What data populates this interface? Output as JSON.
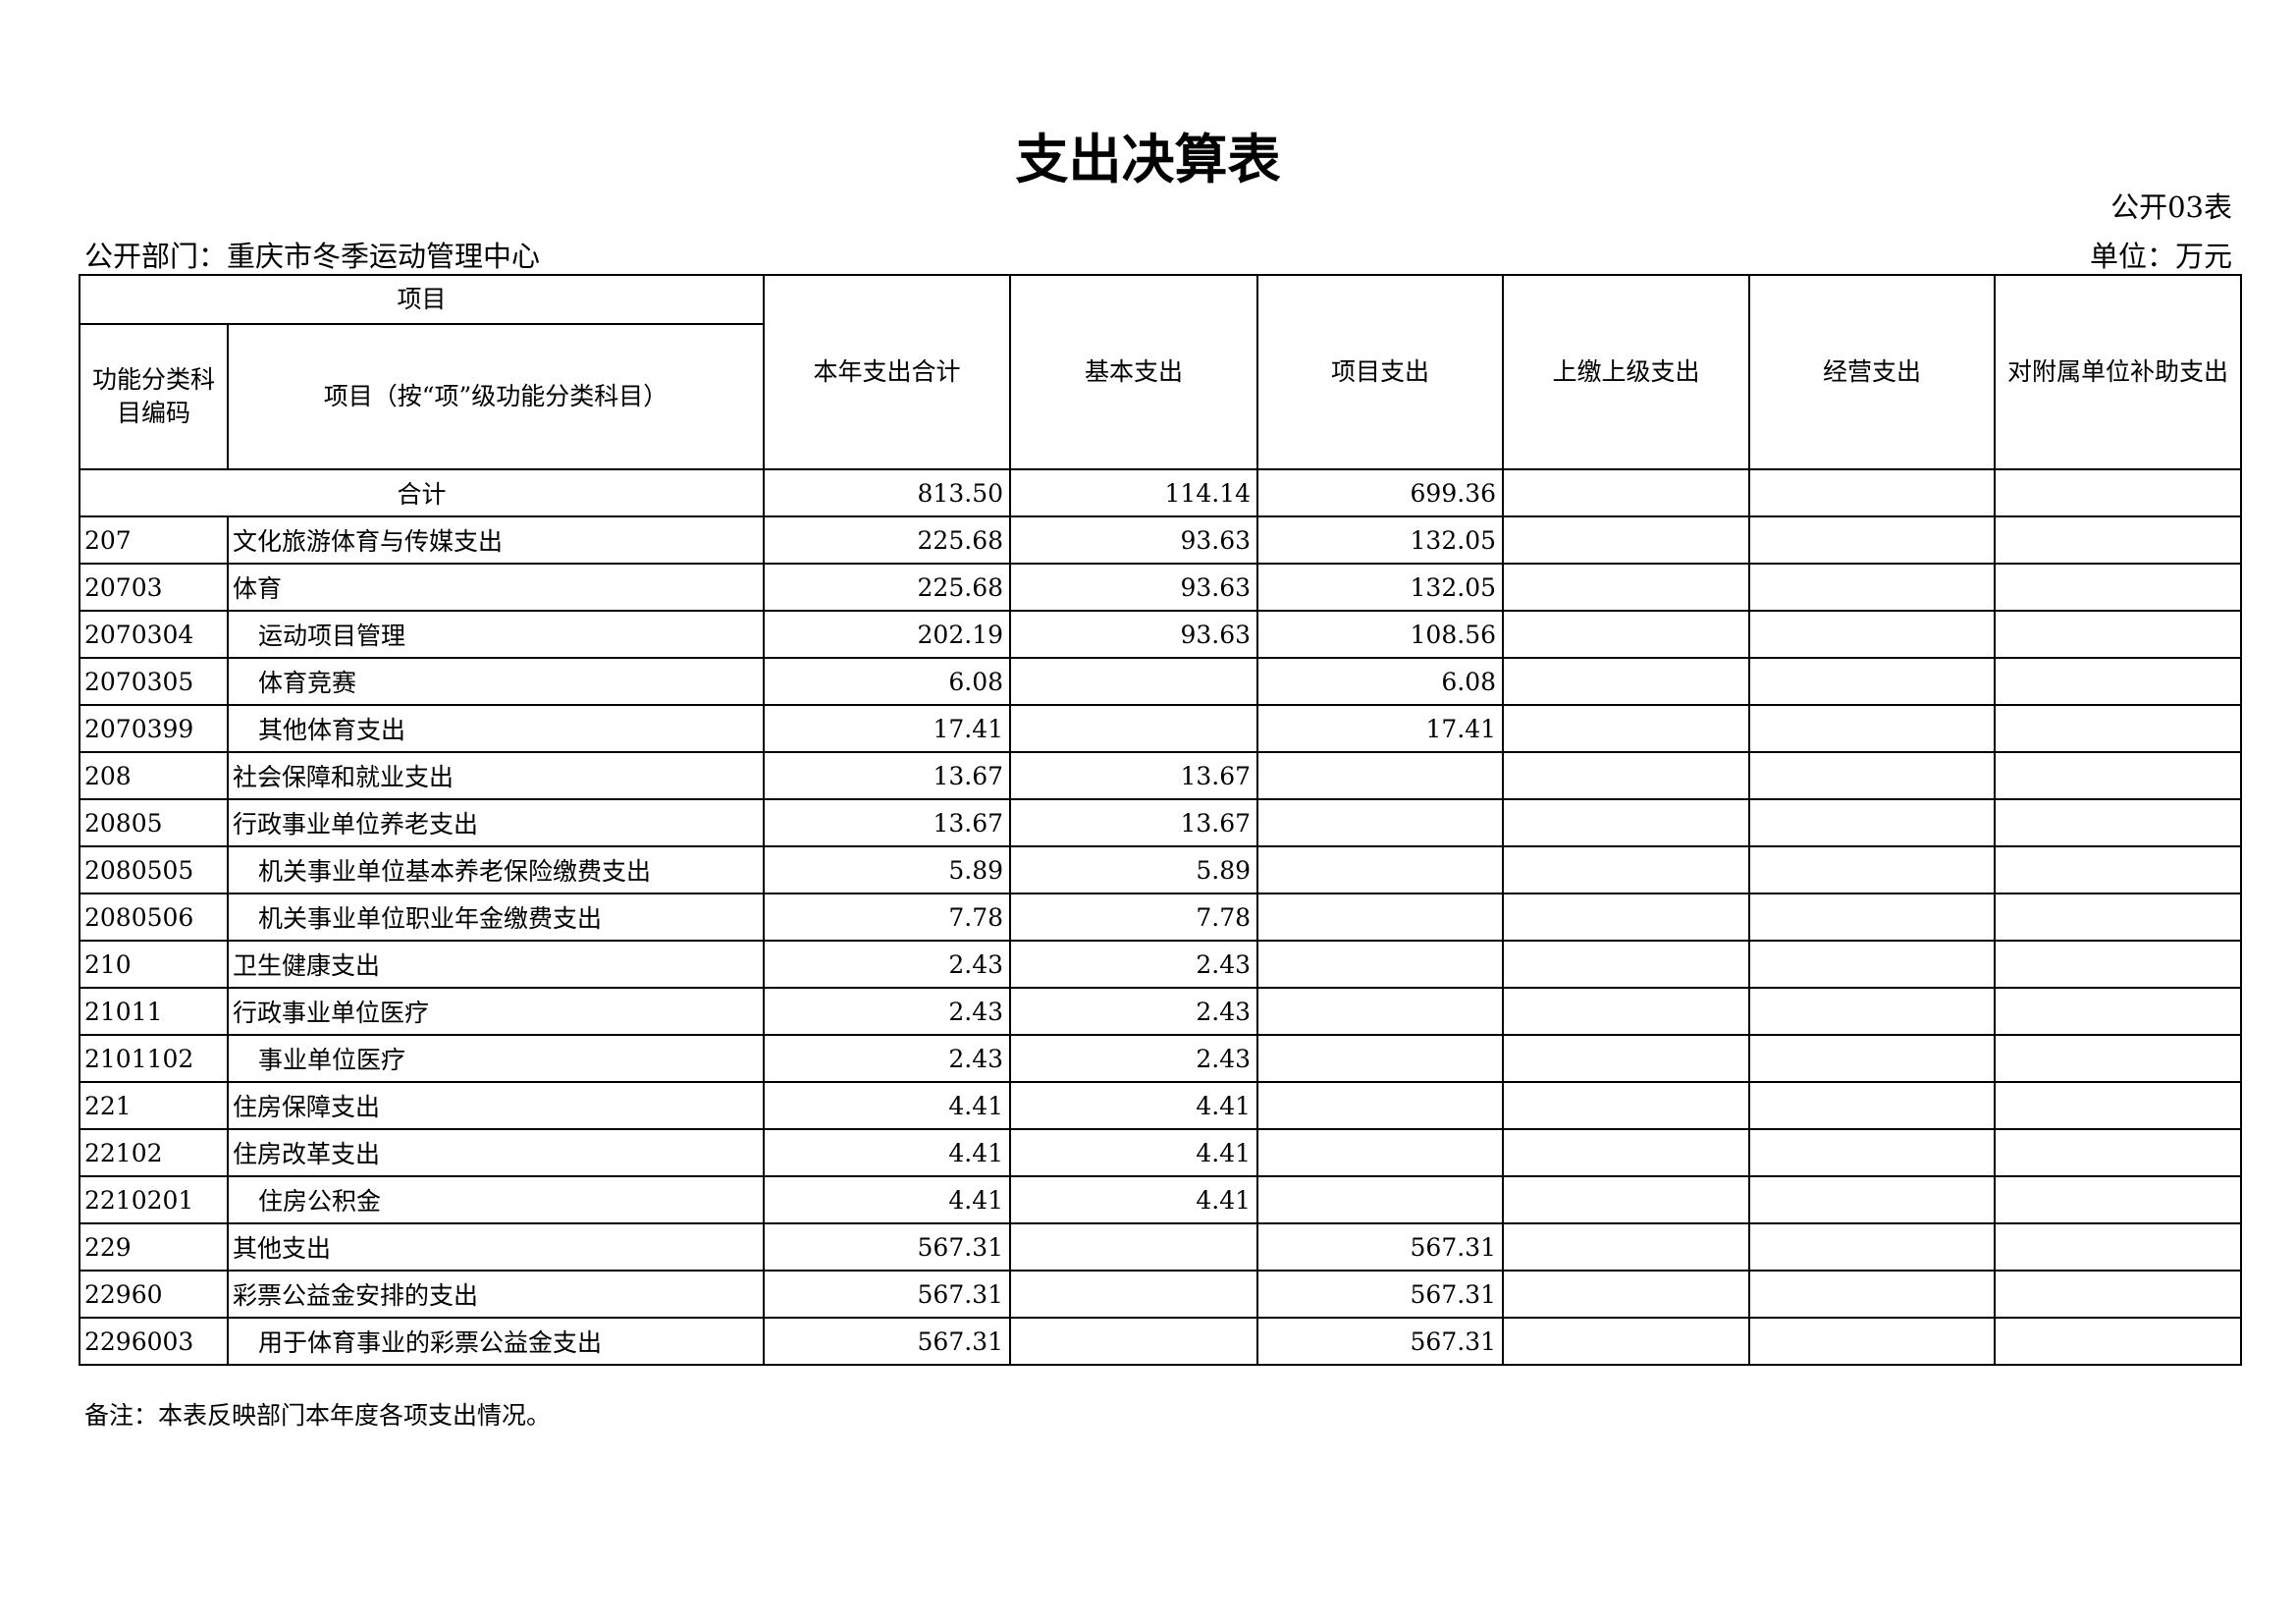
{
  "title": "支出决算表",
  "table_no": "公开03表",
  "department": "公开部门：重庆市冬季运动管理中心",
  "unit": "单位：万元",
  "headers": {
    "project": "项目",
    "code": "功能分类科目编码",
    "name": "项目（按“项”级功能分类科目）",
    "total": "本年支出合计",
    "basic": "基本支出",
    "project_exp": "项目支出",
    "remit": "上缴上级支出",
    "operating": "经营支出",
    "subsidy": "对附属单位补助支出"
  },
  "total_row": {
    "label": "合计",
    "total": "813.50",
    "basic": "114.14",
    "project": "699.36"
  },
  "rows": [
    {
      "code": "207",
      "name": "文化旅游体育与传媒支出",
      "indent": false,
      "total": "225.68",
      "basic": "93.63",
      "project": "132.05"
    },
    {
      "code": "20703",
      "name": "体育",
      "indent": false,
      "total": "225.68",
      "basic": "93.63",
      "project": "132.05"
    },
    {
      "code": "2070304",
      "name": "运动项目管理",
      "indent": true,
      "total": "202.19",
      "basic": "93.63",
      "project": "108.56"
    },
    {
      "code": "2070305",
      "name": "体育竞赛",
      "indent": true,
      "total": "6.08",
      "basic": "",
      "project": "6.08"
    },
    {
      "code": "2070399",
      "name": "其他体育支出",
      "indent": true,
      "total": "17.41",
      "basic": "",
      "project": "17.41"
    },
    {
      "code": "208",
      "name": "社会保障和就业支出",
      "indent": false,
      "total": "13.67",
      "basic": "13.67",
      "project": ""
    },
    {
      "code": "20805",
      "name": "行政事业单位养老支出",
      "indent": false,
      "total": "13.67",
      "basic": "13.67",
      "project": ""
    },
    {
      "code": "2080505",
      "name": "机关事业单位基本养老保险缴费支出",
      "indent": true,
      "total": "5.89",
      "basic": "5.89",
      "project": ""
    },
    {
      "code": "2080506",
      "name": "机关事业单位职业年金缴费支出",
      "indent": true,
      "total": "7.78",
      "basic": "7.78",
      "project": ""
    },
    {
      "code": "210",
      "name": "卫生健康支出",
      "indent": false,
      "total": "2.43",
      "basic": "2.43",
      "project": ""
    },
    {
      "code": "21011",
      "name": "行政事业单位医疗",
      "indent": false,
      "total": "2.43",
      "basic": "2.43",
      "project": ""
    },
    {
      "code": "2101102",
      "name": "事业单位医疗",
      "indent": true,
      "total": "2.43",
      "basic": "2.43",
      "project": ""
    },
    {
      "code": "221",
      "name": "住房保障支出",
      "indent": false,
      "total": "4.41",
      "basic": "4.41",
      "project": ""
    },
    {
      "code": "22102",
      "name": "住房改革支出",
      "indent": false,
      "total": "4.41",
      "basic": "4.41",
      "project": ""
    },
    {
      "code": "2210201",
      "name": "住房公积金",
      "indent": true,
      "total": "4.41",
      "basic": "4.41",
      "project": ""
    },
    {
      "code": "229",
      "name": "其他支出",
      "indent": false,
      "total": "567.31",
      "basic": "",
      "project": "567.31"
    },
    {
      "code": "22960",
      "name": "彩票公益金安排的支出",
      "indent": false,
      "total": "567.31",
      "basic": "",
      "project": "567.31"
    },
    {
      "code": "2296003",
      "name": "用于体育事业的彩票公益金支出",
      "indent": true,
      "total": "567.31",
      "basic": "",
      "project": "567.31"
    }
  ],
  "note": "备注：本表反映部门本年度各项支出情况。"
}
